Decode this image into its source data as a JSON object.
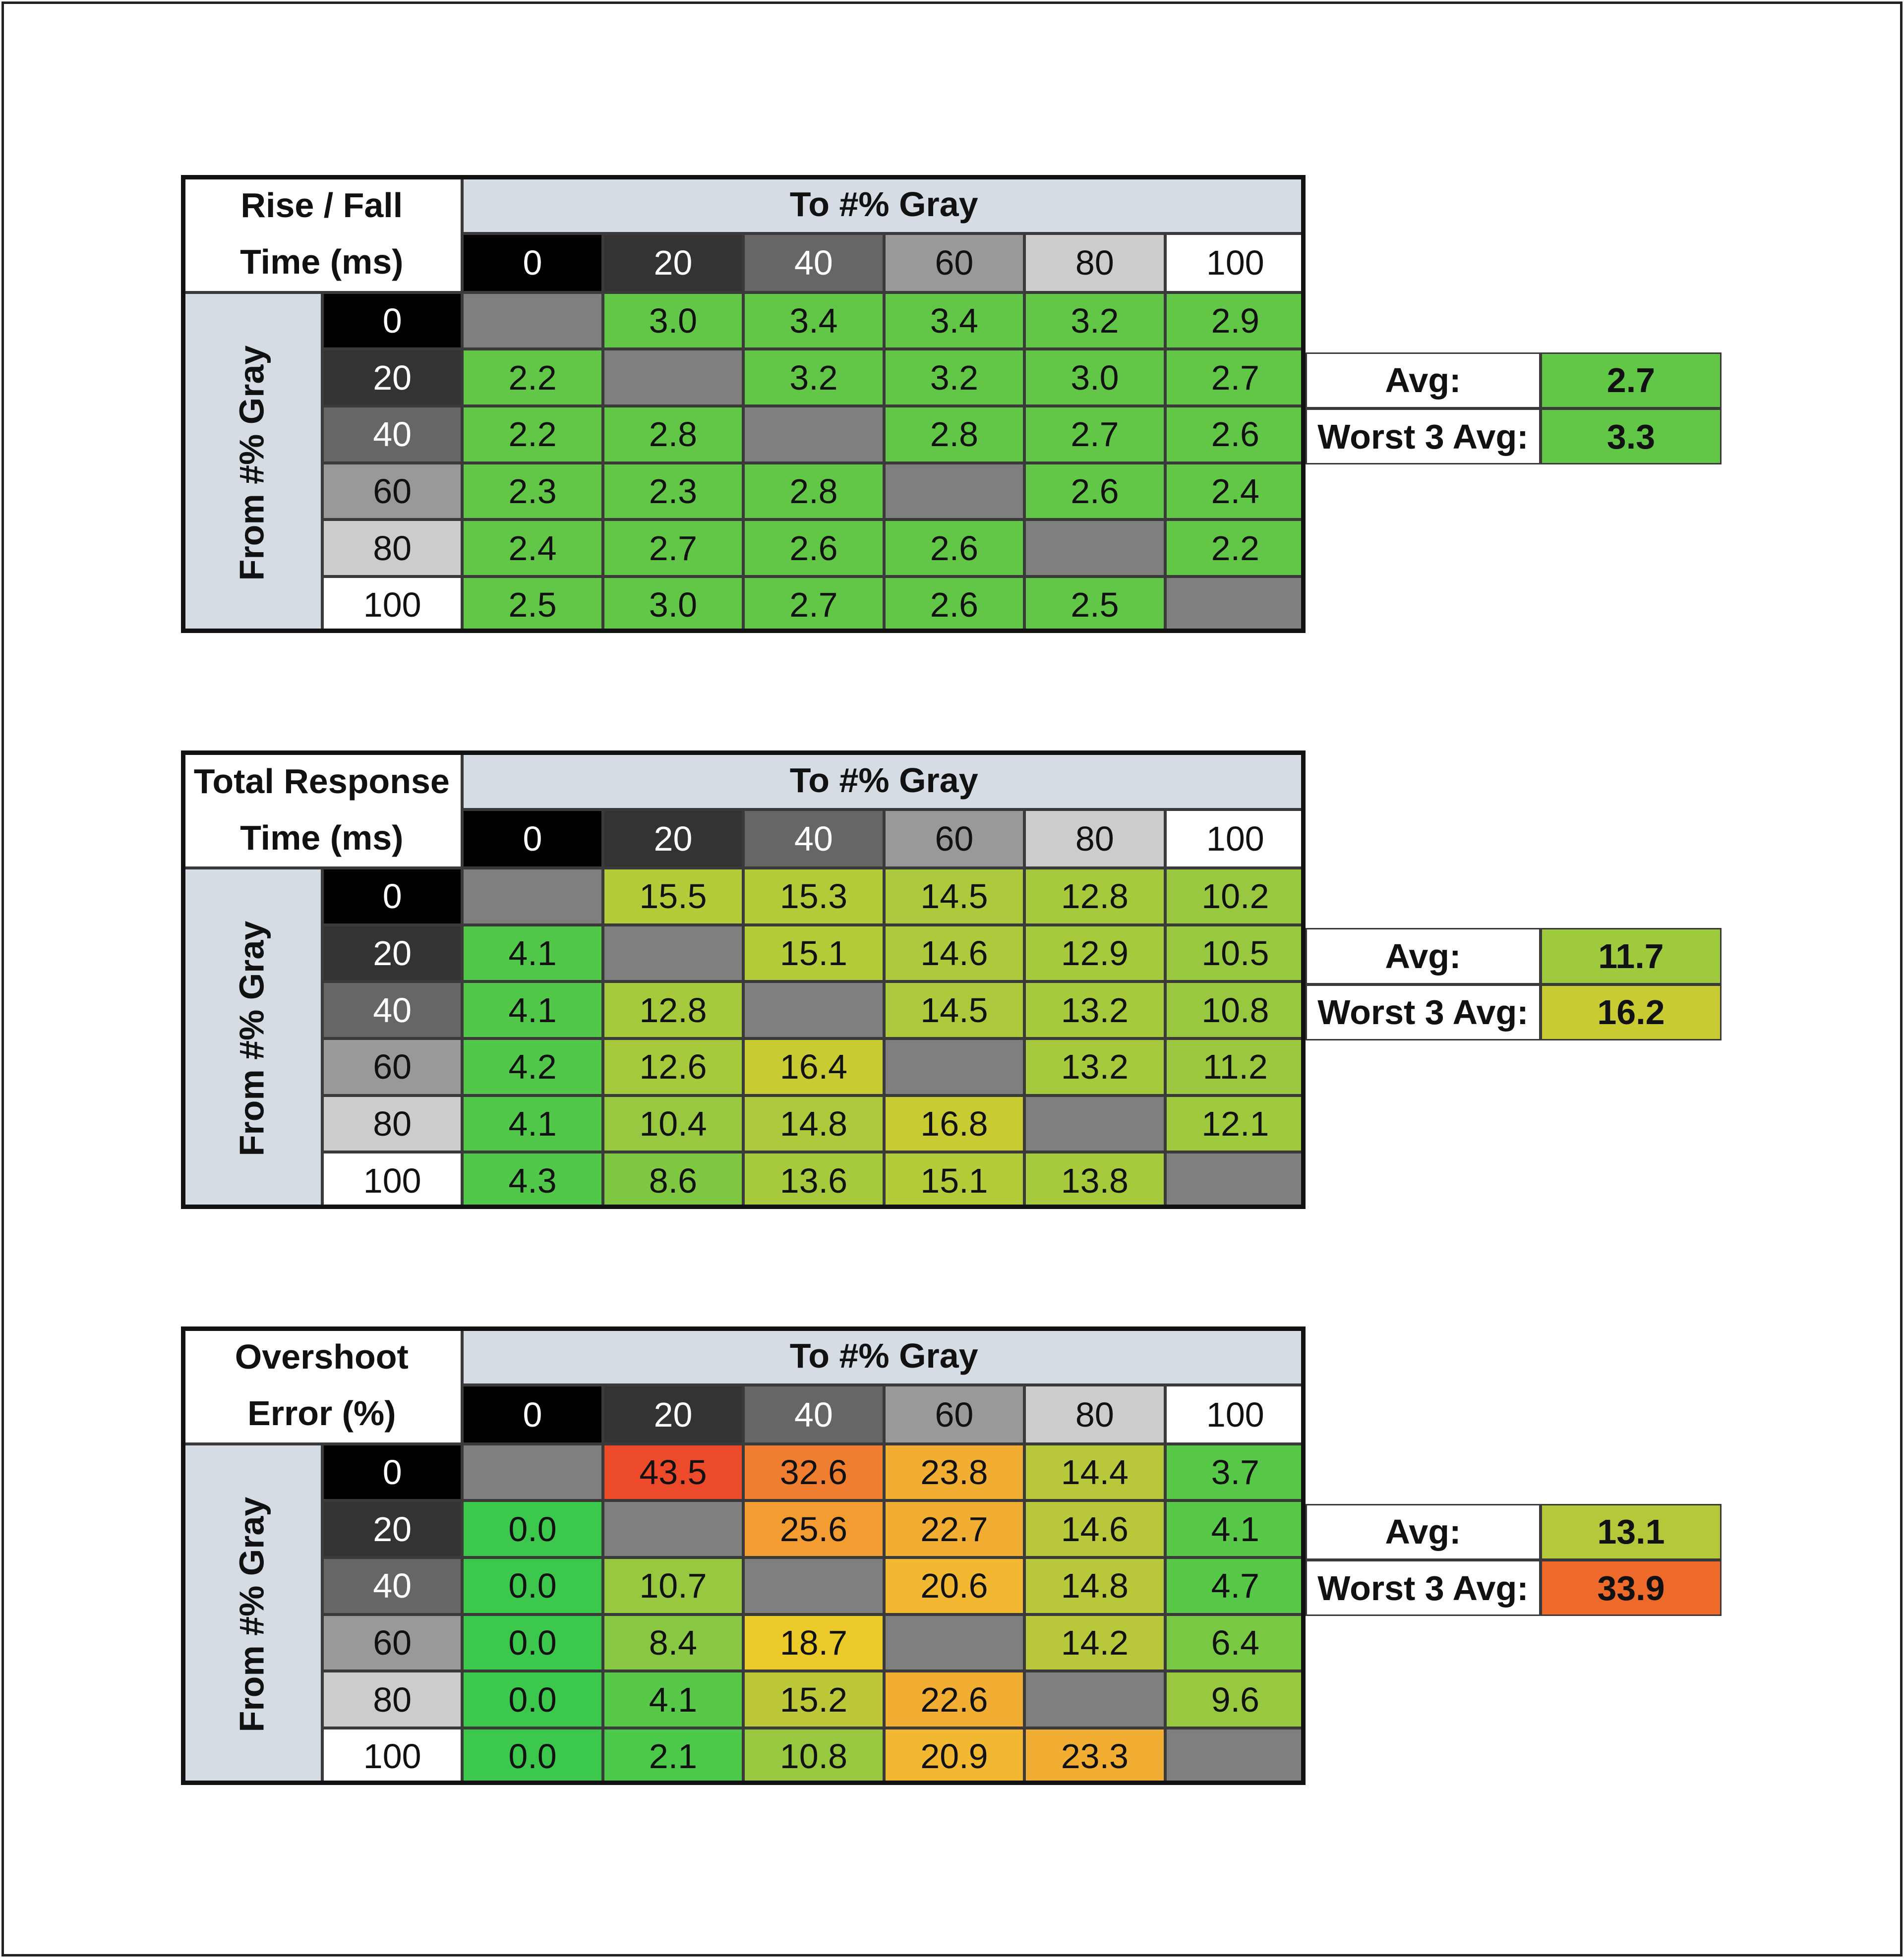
{
  "tables": [
    {
      "title_lines": [
        "Rise / Fall",
        "Time (ms)"
      ],
      "column_header": "To #% Gray",
      "row_header": "From #% Gray",
      "columns": [
        "0",
        "20",
        "40",
        "60",
        "80",
        "100"
      ],
      "rows": [
        "0",
        "20",
        "40",
        "60",
        "80",
        "100"
      ],
      "cells": [
        [
          null,
          "3.0",
          "3.4",
          "3.4",
          "3.2",
          "2.9"
        ],
        [
          "2.2",
          null,
          "3.2",
          "3.2",
          "3.0",
          "2.7"
        ],
        [
          "2.2",
          "2.8",
          null,
          "2.8",
          "2.7",
          "2.6"
        ],
        [
          "2.3",
          "2.3",
          "2.8",
          null,
          "2.6",
          "2.4"
        ],
        [
          "2.4",
          "2.7",
          "2.6",
          "2.6",
          null,
          "2.2"
        ],
        [
          "2.5",
          "3.0",
          "2.7",
          "2.6",
          "2.5",
          null
        ]
      ],
      "cell_colors": [
        [
          null,
          "#62c646",
          "#62c646",
          "#62c646",
          "#62c646",
          "#62c646"
        ],
        [
          "#62c646",
          null,
          "#62c646",
          "#62c646",
          "#62c646",
          "#62c646"
        ],
        [
          "#62c646",
          "#62c646",
          null,
          "#62c646",
          "#62c646",
          "#62c646"
        ],
        [
          "#62c646",
          "#62c646",
          "#62c646",
          null,
          "#62c646",
          "#62c646"
        ],
        [
          "#62c646",
          "#62c646",
          "#62c646",
          "#62c646",
          null,
          "#62c646"
        ],
        [
          "#62c646",
          "#62c646",
          "#62c646",
          "#62c646",
          "#62c646",
          null
        ]
      ],
      "summary": [
        {
          "label": "Avg:",
          "value": "2.7",
          "color": "#62c646"
        },
        {
          "label": "Worst 3 Avg:",
          "value": "3.3",
          "color": "#62c646"
        }
      ]
    },
    {
      "title_lines": [
        "Total Response",
        "Time (ms)"
      ],
      "column_header": "To #% Gray",
      "row_header": "From #% Gray",
      "columns": [
        "0",
        "20",
        "40",
        "60",
        "80",
        "100"
      ],
      "rows": [
        "0",
        "20",
        "40",
        "60",
        "80",
        "100"
      ],
      "cells": [
        [
          null,
          "15.5",
          "15.3",
          "14.5",
          "12.8",
          "10.2"
        ],
        [
          "4.1",
          null,
          "15.1",
          "14.6",
          "12.9",
          "10.5"
        ],
        [
          "4.1",
          "12.8",
          null,
          "14.5",
          "13.2",
          "10.8"
        ],
        [
          "4.2",
          "12.6",
          "16.4",
          null,
          "13.2",
          "11.2"
        ],
        [
          "4.1",
          "10.4",
          "14.8",
          "16.8",
          null,
          "12.1"
        ],
        [
          "4.3",
          "8.6",
          "13.6",
          "15.1",
          "13.8",
          null
        ]
      ],
      "cell_colors": [
        [
          null,
          "#b2cc3a",
          "#b2cc3a",
          "#acca3c",
          "#a6ca3c",
          "#98c840"
        ],
        [
          "#52c84b",
          null,
          "#b2cc3a",
          "#acca3c",
          "#a6ca3c",
          "#98c840"
        ],
        [
          "#52c84b",
          "#a6ca3c",
          null,
          "#acca3c",
          "#a6ca3c",
          "#98c840"
        ],
        [
          "#52c84b",
          "#a6ca3c",
          "#c8cc32",
          null,
          "#a6ca3c",
          "#9cc83f"
        ],
        [
          "#52c84b",
          "#98c840",
          "#acca3c",
          "#c8cc32",
          null,
          "#a0ca3e"
        ],
        [
          "#52c84b",
          "#80c842",
          "#a6ca3c",
          "#b2cc3a",
          "#a6ca3c",
          null
        ]
      ],
      "summary": [
        {
          "label": "Avg:",
          "value": "11.7",
          "color": "#a0ca3e"
        },
        {
          "label": "Worst 3 Avg:",
          "value": "16.2",
          "color": "#c8cc32"
        }
      ]
    },
    {
      "title_lines": [
        "Overshoot",
        "Error (%)"
      ],
      "column_header": "To #% Gray",
      "row_header": "From #% Gray",
      "columns": [
        "0",
        "20",
        "40",
        "60",
        "80",
        "100"
      ],
      "rows": [
        "0",
        "20",
        "40",
        "60",
        "80",
        "100"
      ],
      "cells": [
        [
          null,
          "43.5",
          "32.6",
          "23.8",
          "14.4",
          "3.7"
        ],
        [
          "0.0",
          null,
          "25.6",
          "22.7",
          "14.6",
          "4.1"
        ],
        [
          "0.0",
          "10.7",
          null,
          "20.6",
          "14.8",
          "4.7"
        ],
        [
          "0.0",
          "8.4",
          "18.7",
          null,
          "14.2",
          "6.4"
        ],
        [
          "0.0",
          "4.1",
          "15.2",
          "22.6",
          null,
          "9.6"
        ],
        [
          "0.0",
          "2.1",
          "10.8",
          "20.9",
          "23.3",
          null
        ]
      ],
      "cell_colors": [
        [
          null,
          "#ec4a2a",
          "#f07e30",
          "#f2ae32",
          "#b8c83a",
          "#58c848"
        ],
        [
          "#3cc84c",
          null,
          "#f29c32",
          "#f2ae32",
          "#b8c83a",
          "#58c848"
        ],
        [
          "#3cc84c",
          "#98c840",
          null,
          "#f2b832",
          "#b8c83a",
          "#58c848"
        ],
        [
          "#3cc84c",
          "#88c842",
          "#ecca2a",
          null,
          "#b8c83a",
          "#78c844"
        ],
        [
          "#3cc84c",
          "#58c848",
          "#bcc83a",
          "#f2ae32",
          null,
          "#98c840"
        ],
        [
          "#3cc84c",
          "#4cc84a",
          "#98c840",
          "#f2b832",
          "#f2ae32",
          null
        ]
      ],
      "summary": [
        {
          "label": "Avg:",
          "value": "13.1",
          "color": "#b4c83a"
        },
        {
          "label": "Worst 3 Avg:",
          "value": "33.9",
          "color": "#ee6a2a"
        }
      ]
    }
  ]
}
